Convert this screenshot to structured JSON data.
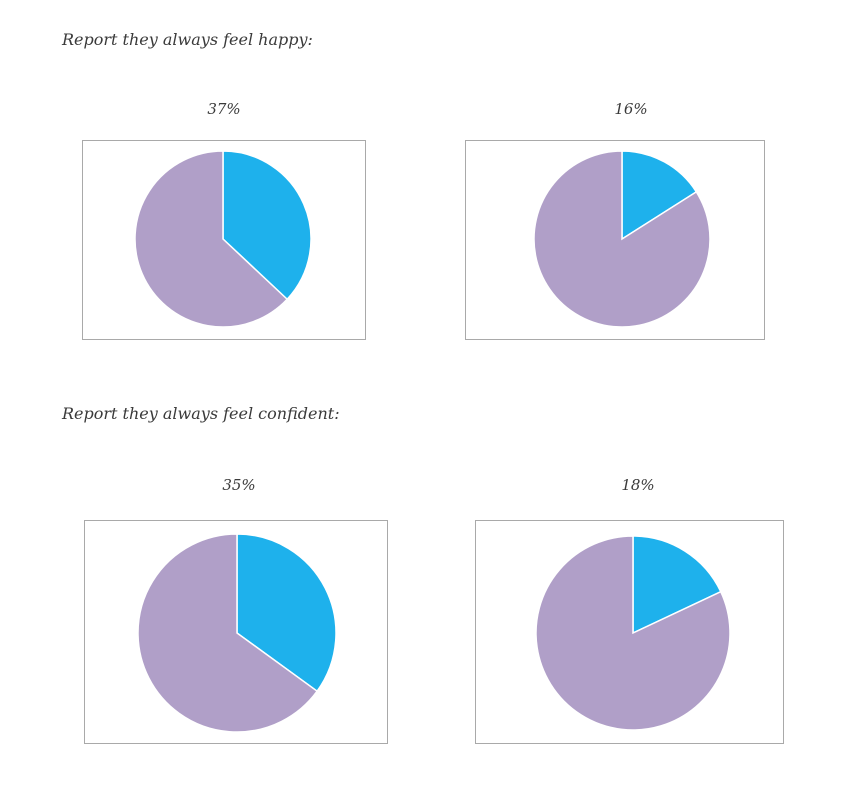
{
  "sections": [
    {
      "heading": "Report they always feel happy:"
    },
    {
      "heading": "Report they always feel confident:"
    }
  ],
  "colors": {
    "highlight": "#1eb1ec",
    "remainder": "#b09fc8",
    "frame_border": "#a9a9a9"
  },
  "chart_data": [
    {
      "type": "pie",
      "title": "37%",
      "values": [
        37,
        63
      ]
    },
    {
      "type": "pie",
      "title": "16%",
      "values": [
        16,
        84
      ]
    },
    {
      "type": "pie",
      "title": "35%",
      "values": [
        35,
        65
      ]
    },
    {
      "type": "pie",
      "title": "18%",
      "values": [
        18,
        82
      ]
    }
  ]
}
